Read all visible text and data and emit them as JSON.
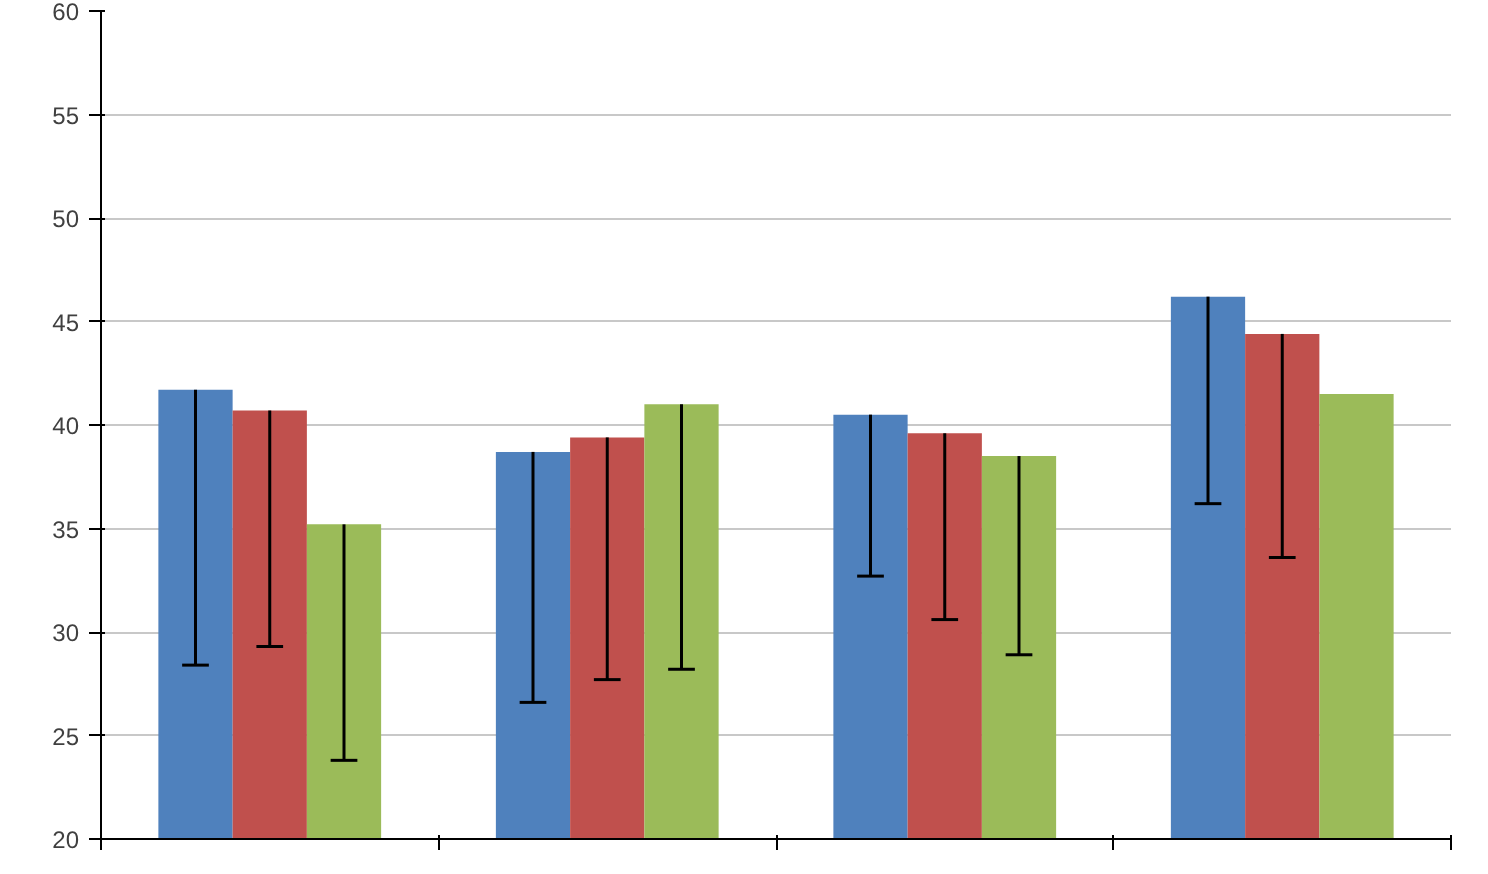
{
  "chart_data": {
    "type": "bar",
    "categories": [
      null,
      null,
      null,
      null
    ],
    "series": [
      {
        "color": "#4f81bd",
        "values": [
          41.7,
          38.7,
          40.5,
          46.2
        ],
        "errors": [
          [
            28.4,
            41.7
          ],
          [
            26.6,
            38.7
          ],
          [
            32.7,
            40.5
          ],
          [
            36.2,
            46.2
          ]
        ]
      },
      {
        "color": "#c0504d",
        "values": [
          40.7,
          39.4,
          39.6,
          44.4
        ],
        "errors": [
          [
            29.3,
            40.7
          ],
          [
            27.7,
            39.4
          ],
          [
            30.6,
            39.6
          ],
          [
            33.6,
            44.4
          ]
        ]
      },
      {
        "color": "#9bbb59",
        "values": [
          35.2,
          41.0,
          38.5,
          41.5
        ],
        "errors": [
          [
            23.8,
            35.2
          ],
          [
            28.2,
            41.0
          ],
          [
            28.9,
            38.5
          ],
          null
        ]
      }
    ],
    "ylim": [
      20,
      60
    ],
    "yticks": [
      20,
      25,
      30,
      35,
      40,
      45,
      50,
      55,
      60
    ],
    "grid": "y"
  }
}
